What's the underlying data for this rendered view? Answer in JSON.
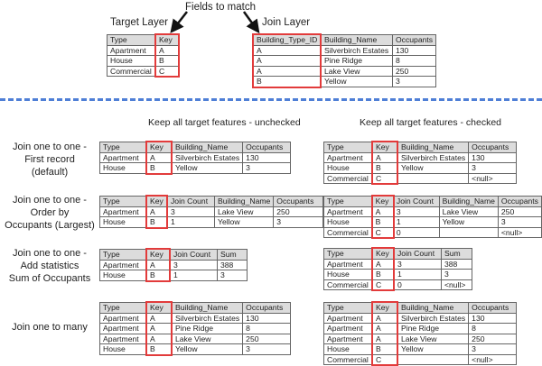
{
  "top": {
    "fields_to_match": "Fields to match",
    "target_layer": {
      "title": "Target Layer",
      "columns": [
        "Type",
        "Key"
      ],
      "rows": [
        [
          "Apartment",
          "A"
        ],
        [
          "House",
          "B"
        ],
        [
          "Commercial",
          "C"
        ]
      ],
      "key_column": 1
    },
    "join_layer": {
      "title": "Join Layer",
      "columns": [
        "Building_Type_ID",
        "Building_Name",
        "Occupants"
      ],
      "rows": [
        [
          "A",
          "Silverbirch Estates",
          "130"
        ],
        [
          "A",
          "Pine Ridge",
          "8"
        ],
        [
          "A",
          "Lake View",
          "250"
        ],
        [
          "B",
          "Yellow",
          "3"
        ]
      ],
      "key_column": 0
    }
  },
  "headers": {
    "unchecked": "Keep all target features - unchecked",
    "checked": "Keep all target features - checked"
  },
  "sections": [
    {
      "label": "Join one to one -\nFirst record\n(default)",
      "unchecked": {
        "columns": [
          "Type",
          "Key",
          "Building_Name",
          "Occupants"
        ],
        "rows": [
          [
            "Apartment",
            "A",
            "Silverbirch Estates",
            "130"
          ],
          [
            "House",
            "B",
            "Yellow",
            "3"
          ]
        ],
        "key_column": 1
      },
      "checked": {
        "columns": [
          "Type",
          "Key",
          "Building_Name",
          "Occupants"
        ],
        "rows": [
          [
            "Apartment",
            "A",
            "Silverbirch Estates",
            "130"
          ],
          [
            "House",
            "B",
            "Yellow",
            "3"
          ],
          [
            "Commercial",
            "C",
            "",
            "<null>"
          ]
        ],
        "key_column": 1
      }
    },
    {
      "label": "Join one to one -\nOrder by\nOccupants (Largest)",
      "unchecked": {
        "columns": [
          "Type",
          "Key",
          "Join Count",
          "Building_Name",
          "Occupants"
        ],
        "rows": [
          [
            "Apartment",
            "A",
            "3",
            "Lake View",
            "250"
          ],
          [
            "House",
            "B",
            "1",
            "Yellow",
            "3"
          ]
        ],
        "key_column": 1
      },
      "checked": {
        "columns": [
          "Type",
          "Key",
          "Join Count",
          "Building_Name",
          "Occupants"
        ],
        "rows": [
          [
            "Apartment",
            "A",
            "3",
            "Lake View",
            "250"
          ],
          [
            "House",
            "B",
            "1",
            "Yellow",
            "3"
          ],
          [
            "Commercial",
            "C",
            "0",
            "",
            "<null>"
          ]
        ],
        "key_column": 1
      }
    },
    {
      "label": "Join one to one -\nAdd statistics\nSum of Occupants",
      "unchecked": {
        "columns": [
          "Type",
          "Key",
          "Join Count",
          "Sum"
        ],
        "rows": [
          [
            "Apartment",
            "A",
            "3",
            "388"
          ],
          [
            "House",
            "B",
            "1",
            "3"
          ]
        ],
        "key_column": 1
      },
      "checked": {
        "columns": [
          "Type",
          "Key",
          "Join Count",
          "Sum"
        ],
        "rows": [
          [
            "Apartment",
            "A",
            "3",
            "388"
          ],
          [
            "House",
            "B",
            "1",
            "3"
          ],
          [
            "Commercial",
            "C",
            "0",
            "<null>"
          ]
        ],
        "key_column": 1
      }
    },
    {
      "label": "Join one to many",
      "unchecked": {
        "columns": [
          "Type",
          "Key",
          "Building_Name",
          "Occupants"
        ],
        "rows": [
          [
            "Apartment",
            "A",
            "Silverbirch Estates",
            "130"
          ],
          [
            "Apartment",
            "A",
            "Pine Ridge",
            "8"
          ],
          [
            "Apartment",
            "A",
            "Lake View",
            "250"
          ],
          [
            "House",
            "B",
            "Yellow",
            "3"
          ]
        ],
        "key_column": 1
      },
      "checked": {
        "columns": [
          "Type",
          "Key",
          "Building_Name",
          "Occupants"
        ],
        "rows": [
          [
            "Apartment",
            "A",
            "Silverbirch Estates",
            "130"
          ],
          [
            "Apartment",
            "A",
            "Pine Ridge",
            "8"
          ],
          [
            "Apartment",
            "A",
            "Lake View",
            "250"
          ],
          [
            "House",
            "B",
            "Yellow",
            "3"
          ],
          [
            "Commercial",
            "C",
            "",
            "<null>"
          ]
        ],
        "key_column": 1
      }
    }
  ],
  "colors": {
    "key_highlight": "#e23b3b",
    "divider": "#4f7fd6",
    "header_fill": "#dcdcdc"
  }
}
